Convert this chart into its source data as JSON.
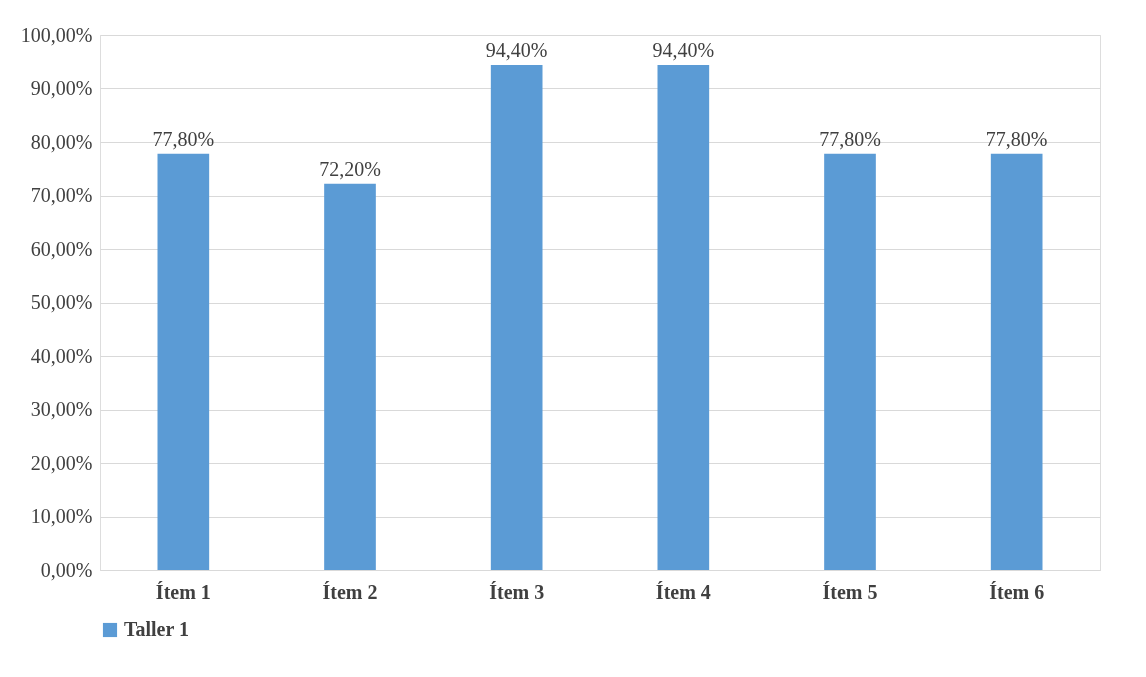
{
  "chart_data": {
    "type": "bar",
    "categories": [
      "Ítem 1",
      "Ítem 2",
      "Ítem 3",
      "Ítem 4",
      "Ítem 5",
      "Ítem 6"
    ],
    "series": [
      {
        "name": "Taller 1",
        "color": "#5b9bd5",
        "values": [
          77.8,
          72.2,
          94.4,
          94.4,
          77.8,
          77.8
        ],
        "value_labels": [
          "77,80%",
          "72,20%",
          "94,40%",
          "94,40%",
          "77,80%",
          "77,80%"
        ]
      }
    ],
    "ylim": [
      0,
      100
    ],
    "yticks": [
      {
        "value": 0,
        "label": "0,00%"
      },
      {
        "value": 10,
        "label": "10,00%"
      },
      {
        "value": 20,
        "label": "20,00%"
      },
      {
        "value": 30,
        "label": "30,00%"
      },
      {
        "value": 40,
        "label": "40,00%"
      },
      {
        "value": 50,
        "label": "50,00%"
      },
      {
        "value": 60,
        "label": "60,00%"
      },
      {
        "value": 70,
        "label": "70,00%"
      },
      {
        "value": 80,
        "label": "80,00%"
      },
      {
        "value": 90,
        "label": "90,00%"
      },
      {
        "value": 100,
        "label": "100,00%"
      }
    ],
    "grid": "y",
    "legend": "bottom"
  }
}
